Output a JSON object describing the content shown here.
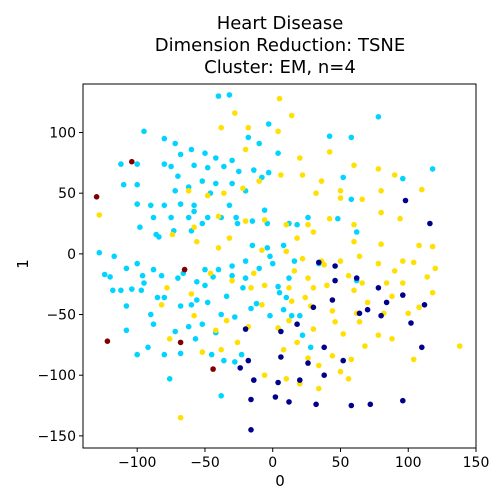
{
  "chart_data": {
    "type": "scatter",
    "title": [
      "Heart Disease",
      "Dimension Reduction: TSNE",
      "Cluster: EM, n=4"
    ],
    "xlabel": "0",
    "ylabel": "1",
    "xlim": [
      -140,
      150
    ],
    "ylim": [
      -160,
      140
    ],
    "xticks": [
      -100,
      -50,
      0,
      50,
      100,
      150
    ],
    "yticks": [
      -150,
      -100,
      -50,
      0,
      50,
      100
    ],
    "grid": false,
    "series": [
      {
        "color": "#00d4ff",
        "points": [
          [
            -95,
            101
          ],
          [
            -80,
            95
          ],
          [
            -72,
            91
          ],
          [
            -60,
            86
          ],
          [
            -68,
            82
          ],
          [
            -50,
            83
          ],
          [
            -42,
            79
          ],
          [
            -30,
            77
          ],
          [
            -112,
            74
          ],
          [
            -100,
            74
          ],
          [
            -80,
            74
          ],
          [
            -75,
            72
          ],
          [
            -58,
            73
          ],
          [
            -48,
            71
          ],
          [
            -36,
            72
          ],
          [
            -25,
            68
          ],
          [
            -110,
            57
          ],
          [
            -100,
            57
          ],
          [
            -72,
            52
          ],
          [
            -62,
            55
          ],
          [
            -52,
            60
          ],
          [
            -42,
            58
          ],
          [
            -100,
            41
          ],
          [
            -90,
            40
          ],
          [
            -80,
            40
          ],
          [
            -68,
            41
          ],
          [
            -58,
            40
          ],
          [
            -32,
            40
          ],
          [
            -20,
            52
          ],
          [
            -88,
            30
          ],
          [
            -75,
            30
          ],
          [
            -62,
            30
          ],
          [
            -48,
            30
          ],
          [
            -38,
            30
          ],
          [
            -26,
            25
          ],
          [
            -15,
            27
          ],
          [
            -98,
            22
          ],
          [
            -86,
            16
          ],
          [
            -73,
            19
          ],
          [
            -60,
            19
          ],
          [
            -52,
            25
          ],
          [
            -124,
            -17
          ],
          [
            -117,
            -2
          ],
          [
            -108,
            -12
          ],
          [
            -100,
            -8
          ],
          [
            -88,
            -13
          ],
          [
            -82,
            -18
          ],
          [
            -70,
            -20
          ],
          [
            -56,
            -23
          ],
          [
            -50,
            -13
          ],
          [
            -40,
            -13
          ],
          [
            -30,
            -18
          ],
          [
            -118,
            -30
          ],
          [
            -112,
            -30
          ],
          [
            -104,
            -29
          ],
          [
            -97,
            -30
          ],
          [
            -85,
            -36
          ],
          [
            -68,
            -43
          ],
          [
            -56,
            -38
          ],
          [
            -48,
            -40
          ],
          [
            -38,
            -50
          ],
          [
            -28,
            -52
          ],
          [
            -108,
            -63
          ],
          [
            -88,
            -58
          ],
          [
            -72,
            -64
          ],
          [
            -62,
            -60
          ],
          [
            -52,
            -58
          ],
          [
            -42,
            -65
          ],
          [
            -100,
            -83
          ],
          [
            -80,
            -83
          ],
          [
            -68,
            -82
          ],
          [
            -45,
            -83
          ],
          [
            -36,
            -88
          ],
          [
            -128,
            1
          ],
          [
            -40,
            130
          ],
          [
            -32,
            131
          ],
          [
            -18,
            96
          ],
          [
            -10,
            91
          ],
          [
            -3,
            107
          ],
          [
            -14,
            69
          ],
          [
            -3,
            67
          ],
          [
            4,
            83
          ],
          [
            -27,
            30
          ],
          [
            -15,
            7
          ],
          [
            -4,
            5
          ],
          [
            8,
            7
          ],
          [
            -6,
            36
          ],
          [
            18,
            24
          ],
          [
            -20,
            -6
          ],
          [
            -10,
            -12
          ],
          [
            0,
            -8
          ],
          [
            16,
            -6
          ],
          [
            34,
            -8
          ],
          [
            12,
            -20
          ],
          [
            5,
            -32
          ],
          [
            -16,
            -45
          ],
          [
            8,
            -46
          ],
          [
            20,
            -51
          ],
          [
            22,
            -67
          ],
          [
            -28,
            -89
          ],
          [
            -38,
            -117
          ],
          [
            -76,
            -103
          ],
          [
            28,
            -77
          ],
          [
            42,
            97
          ],
          [
            58,
            96
          ],
          [
            52,
            63
          ],
          [
            58,
            45
          ],
          [
            48,
            29
          ],
          [
            62,
            18
          ],
          [
            78,
            113
          ],
          [
            96,
            62
          ],
          [
            118,
            70
          ],
          [
            4,
            -27
          ],
          [
            -60,
            -42
          ],
          [
            -95,
            -24
          ],
          [
            -84,
            14
          ],
          [
            -44,
            -19
          ],
          [
            -92,
            -77
          ],
          [
            -80,
            -36
          ],
          [
            -66,
            -16
          ],
          [
            -90,
            -50
          ],
          [
            -34,
            -35
          ],
          [
            -22,
            -28
          ],
          [
            -12,
            -41
          ],
          [
            -2,
            -51
          ],
          [
            -108,
            -43
          ],
          [
            -20,
            -20
          ],
          [
            10,
            -36
          ],
          [
            -8,
            63
          ],
          [
            -50,
            -26
          ],
          [
            -120,
            -19
          ],
          [
            14,
            -51
          ],
          [
            -57,
            -70
          ],
          [
            -23,
            -83
          ],
          [
            -96,
            -18
          ],
          [
            -30,
            -10
          ],
          [
            -2,
            -2
          ],
          [
            62,
            -22
          ],
          [
            -58,
            35
          ],
          [
            -46,
            50
          ],
          [
            -30,
            58
          ],
          [
            -70,
            64
          ],
          [
            -4,
            25
          ],
          [
            12,
            25
          ],
          [
            26,
            30
          ]
        ]
      },
      {
        "color": "#ffe000",
        "points": [
          [
            -28,
            116
          ],
          [
            5,
            128
          ],
          [
            -18,
            104
          ],
          [
            14,
            114
          ],
          [
            -38,
            104
          ],
          [
            -20,
            86
          ],
          [
            4,
            101
          ],
          [
            20,
            79
          ],
          [
            42,
            84
          ],
          [
            60,
            73
          ],
          [
            78,
            70
          ],
          [
            90,
            65
          ],
          [
            -10,
            60
          ],
          [
            6,
            65
          ],
          [
            22,
            65
          ],
          [
            36,
            60
          ],
          [
            50,
            52
          ],
          [
            -62,
            52
          ],
          [
            -48,
            48
          ],
          [
            -36,
            50
          ],
          [
            -22,
            54
          ],
          [
            32,
            50
          ],
          [
            50,
            46
          ],
          [
            66,
            45
          ],
          [
            80,
            52
          ],
          [
            110,
            53
          ],
          [
            -40,
            31
          ],
          [
            -20,
            27
          ],
          [
            -6,
            28
          ],
          [
            10,
            24
          ],
          [
            26,
            24
          ],
          [
            42,
            29
          ],
          [
            60,
            24
          ],
          [
            80,
            34
          ],
          [
            94,
            29
          ],
          [
            -58,
            22
          ],
          [
            -32,
            13
          ],
          [
            18,
            13
          ],
          [
            30,
            18
          ],
          [
            60,
            10
          ],
          [
            80,
            8
          ],
          [
            108,
            7
          ],
          [
            118,
            6
          ],
          [
            -74,
            16
          ],
          [
            -56,
            10
          ],
          [
            -40,
            5
          ],
          [
            -8,
            3
          ],
          [
            10,
            2
          ],
          [
            22,
            -4
          ],
          [
            36,
            -6
          ],
          [
            50,
            -6
          ],
          [
            64,
            -2
          ],
          [
            78,
            -8
          ],
          [
            96,
            -6
          ],
          [
            -46,
            -16
          ],
          [
            -30,
            -22
          ],
          [
            -16,
            -28
          ],
          [
            -6,
            -26
          ],
          [
            16,
            -14
          ],
          [
            26,
            -20
          ],
          [
            40,
            -26
          ],
          [
            56,
            -18
          ],
          [
            66,
            -24
          ],
          [
            84,
            -24
          ],
          [
            -82,
            -42
          ],
          [
            -58,
            -51
          ],
          [
            -34,
            -55
          ],
          [
            -18,
            -60
          ],
          [
            12,
            -55
          ],
          [
            28,
            -43
          ],
          [
            46,
            -56
          ],
          [
            62,
            -49
          ],
          [
            82,
            -49
          ],
          [
            100,
            -49
          ],
          [
            -76,
            -70
          ],
          [
            -52,
            -81
          ],
          [
            -38,
            -79
          ],
          [
            -26,
            -73
          ],
          [
            8,
            -79
          ],
          [
            26,
            -86
          ],
          [
            44,
            -84
          ],
          [
            58,
            -87
          ],
          [
            68,
            -76
          ],
          [
            88,
            -70
          ],
          [
            104,
            -87
          ],
          [
            -68,
            -135
          ],
          [
            10,
            -103
          ],
          [
            20,
            -107
          ],
          [
            34,
            -111
          ],
          [
            50,
            -97
          ],
          [
            -128,
            32
          ],
          [
            138,
            -76
          ],
          [
            114,
            -19
          ],
          [
            118,
            -32
          ],
          [
            96,
            -24
          ],
          [
            108,
            -44
          ],
          [
            -60,
            -33
          ],
          [
            30,
            -62
          ],
          [
            52,
            -66
          ],
          [
            -6,
            -100
          ],
          [
            18,
            -73
          ],
          [
            70,
            -40
          ],
          [
            38,
            -9
          ],
          [
            -78,
            -28
          ],
          [
            24,
            -36
          ],
          [
            78,
            -67
          ],
          [
            12,
            -28
          ],
          [
            60,
            -30
          ],
          [
            90,
            -14
          ],
          [
            120,
            -12
          ],
          [
            -14,
            -16
          ],
          [
            30,
            -28
          ],
          [
            44,
            -47
          ],
          [
            34,
            -92
          ],
          [
            56,
            -103
          ],
          [
            -42,
            -63
          ],
          [
            104,
            -7
          ],
          [
            -8,
            -42
          ],
          [
            14,
            -39
          ],
          [
            4,
            -61
          ],
          [
            88,
            -35
          ],
          [
            64,
            -56
          ]
        ]
      },
      {
        "color": "#00008b",
        "points": [
          [
            34,
            -7
          ],
          [
            46,
            -10
          ],
          [
            62,
            -20
          ],
          [
            78,
            -28
          ],
          [
            96,
            -34
          ],
          [
            112,
            -42
          ],
          [
            84,
            -40
          ],
          [
            64,
            -49
          ],
          [
            44,
            -38
          ],
          [
            30,
            -44
          ],
          [
            18,
            -58
          ],
          [
            6,
            -64
          ],
          [
            -20,
            -62
          ],
          [
            -18,
            -88
          ],
          [
            -24,
            -94
          ],
          [
            6,
            -85
          ],
          [
            4,
            -106
          ],
          [
            -14,
            -104
          ],
          [
            20,
            -104
          ],
          [
            38,
            -100
          ],
          [
            26,
            -90
          ],
          [
            52,
            -88
          ],
          [
            38,
            -77
          ],
          [
            -16,
            -120
          ],
          [
            2,
            -118
          ],
          [
            12,
            -122
          ],
          [
            32,
            -124
          ],
          [
            58,
            -125
          ],
          [
            72,
            -124
          ],
          [
            96,
            -121
          ],
          [
            102,
            -57
          ],
          [
            80,
            -51
          ],
          [
            -16,
            -145
          ],
          [
            116,
            25
          ],
          [
            98,
            44
          ],
          [
            110,
            -77
          ],
          [
            46,
            -22
          ],
          [
            70,
            -46
          ]
        ]
      },
      {
        "color": "#800000",
        "points": [
          [
            -104,
            76
          ],
          [
            -130,
            47
          ],
          [
            -122,
            -72
          ],
          [
            -68,
            -73
          ],
          [
            -65,
            -13
          ],
          [
            -44,
            -95
          ]
        ]
      }
    ]
  }
}
